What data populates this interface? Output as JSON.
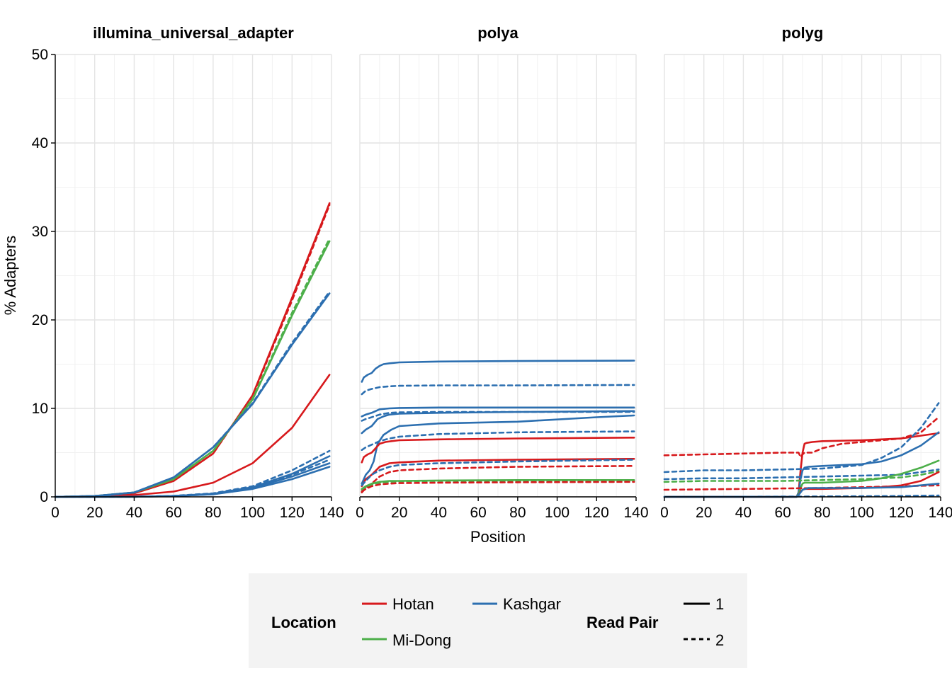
{
  "chart_data": {
    "type": "line",
    "facets": [
      {
        "title": "illumina_universal_adapter",
        "series": [
          {
            "location": "Hotan",
            "read_pair": "1",
            "x": [
              0,
              20,
              40,
              60,
              80,
              100,
              120,
              139
            ],
            "y": [
              0,
              0.1,
              0.4,
              1.8,
              4.9,
              11.5,
              22.5,
              33.2
            ]
          },
          {
            "location": "Hotan",
            "read_pair": "2",
            "x": [
              0,
              20,
              40,
              60,
              80,
              100,
              120,
              139
            ],
            "y": [
              0,
              0.1,
              0.4,
              1.8,
              4.9,
              11.4,
              22.2,
              33.0
            ]
          },
          {
            "location": "Hotan",
            "read_pair": "1",
            "x": [
              0,
              20,
              40,
              60,
              80,
              100,
              120,
              139
            ],
            "y": [
              0,
              0.05,
              0.2,
              0.6,
              1.6,
              3.8,
              7.8,
              13.8
            ]
          },
          {
            "location": "Mi-Dong",
            "read_pair": "1",
            "x": [
              0,
              20,
              40,
              60,
              80,
              100,
              120,
              139
            ],
            "y": [
              0,
              0.1,
              0.5,
              2.0,
              5.2,
              11.0,
              20.5,
              28.9
            ]
          },
          {
            "location": "Mi-Dong",
            "read_pair": "2",
            "x": [
              0,
              20,
              40,
              60,
              80,
              100,
              120,
              139
            ],
            "y": [
              0,
              0.1,
              0.5,
              2.0,
              5.2,
              11.1,
              20.8,
              29.2
            ]
          },
          {
            "location": "Kashgar",
            "read_pair": "1",
            "x": [
              0,
              20,
              40,
              60,
              80,
              100,
              120,
              139
            ],
            "y": [
              0,
              0.1,
              0.5,
              2.2,
              5.6,
              10.5,
              17.2,
              23.0
            ]
          },
          {
            "location": "Kashgar",
            "read_pair": "2",
            "x": [
              0,
              20,
              40,
              60,
              80,
              100,
              120,
              139
            ],
            "y": [
              0,
              0.1,
              0.5,
              2.2,
              5.6,
              10.6,
              17.4,
              23.2
            ]
          },
          {
            "location": "Kashgar",
            "read_pair": "1",
            "x": [
              0,
              40,
              60,
              80,
              100,
              120,
              139
            ],
            "y": [
              0,
              0.02,
              0.1,
              0.3,
              0.9,
              2.0,
              3.4
            ]
          },
          {
            "location": "Kashgar",
            "read_pair": "1",
            "x": [
              0,
              40,
              60,
              80,
              100,
              120,
              139
            ],
            "y": [
              0,
              0.02,
              0.1,
              0.3,
              1.0,
              2.3,
              3.8
            ]
          },
          {
            "location": "Kashgar",
            "read_pair": "1",
            "x": [
              0,
              40,
              60,
              80,
              100,
              120,
              139
            ],
            "y": [
              0,
              0.02,
              0.1,
              0.35,
              1.1,
              2.6,
              4.6
            ]
          },
          {
            "location": "Kashgar",
            "read_pair": "2",
            "x": [
              0,
              40,
              60,
              80,
              100,
              120,
              139
            ],
            "y": [
              0,
              0.02,
              0.1,
              0.35,
              1.1,
              2.5,
              4.2
            ]
          },
          {
            "location": "Kashgar",
            "read_pair": "2",
            "x": [
              0,
              40,
              60,
              80,
              100,
              120,
              139
            ],
            "y": [
              0,
              0.02,
              0.12,
              0.4,
              1.2,
              3.0,
              5.2
            ]
          }
        ]
      },
      {
        "title": "polya",
        "series": [
          {
            "location": "Kashgar",
            "read_pair": "1",
            "x": [
              1,
              2,
              4,
              6,
              8,
              10,
              12,
              15,
              20,
              40,
              80,
              139
            ],
            "y": [
              13,
              13.5,
              13.8,
              14.0,
              14.5,
              14.8,
              15.0,
              15.1,
              15.2,
              15.3,
              15.35,
              15.4
            ]
          },
          {
            "location": "Kashgar",
            "read_pair": "2",
            "x": [
              1,
              3,
              6,
              10,
              15,
              20,
              40,
              80,
              139
            ],
            "y": [
              11.6,
              12.0,
              12.2,
              12.4,
              12.5,
              12.55,
              12.6,
              12.6,
              12.65
            ]
          },
          {
            "location": "Kashgar",
            "read_pair": "1",
            "x": [
              1,
              3,
              6,
              10,
              15,
              20,
              40,
              80,
              139
            ],
            "y": [
              9.1,
              9.3,
              9.5,
              9.9,
              10.0,
              10.05,
              10.1,
              10.1,
              10.1
            ]
          },
          {
            "location": "Kashgar",
            "read_pair": "2",
            "x": [
              1,
              3,
              6,
              10,
              15,
              20,
              40,
              80,
              139
            ],
            "y": [
              8.6,
              8.8,
              9.0,
              9.3,
              9.5,
              9.55,
              9.6,
              9.6,
              9.6
            ]
          },
          {
            "location": "Kashgar",
            "read_pair": "1",
            "x": [
              1,
              3,
              6,
              9,
              12,
              15,
              20,
              40,
              80,
              139
            ],
            "y": [
              7.2,
              7.6,
              8.0,
              8.8,
              9.1,
              9.3,
              9.4,
              9.5,
              9.6,
              9.7
            ]
          },
          {
            "location": "Kashgar",
            "read_pair": "1",
            "x": [
              1,
              3,
              5,
              7,
              9,
              12,
              16,
              20,
              40,
              80,
              120,
              139
            ],
            "y": [
              1.5,
              2.5,
              3.0,
              4.0,
              6.0,
              7.0,
              7.6,
              8.0,
              8.3,
              8.5,
              9.0,
              9.2
            ]
          },
          {
            "location": "Kashgar",
            "read_pair": "2",
            "x": [
              1,
              3,
              6,
              10,
              15,
              20,
              40,
              80,
              139
            ],
            "y": [
              5.3,
              5.6,
              5.9,
              6.3,
              6.6,
              6.8,
              7.1,
              7.3,
              7.4
            ]
          },
          {
            "location": "Hotan",
            "read_pair": "1",
            "x": [
              1,
              2,
              4,
              6,
              8,
              10,
              13,
              16,
              20,
              40,
              80,
              139
            ],
            "y": [
              3.9,
              4.5,
              4.8,
              5.0,
              5.5,
              6.0,
              6.2,
              6.3,
              6.4,
              6.5,
              6.6,
              6.7
            ]
          },
          {
            "location": "Hotan",
            "read_pair": "1",
            "x": [
              1,
              3,
              6,
              10,
              15,
              20,
              40,
              80,
              139
            ],
            "y": [
              1.2,
              2.0,
              2.5,
              3.4,
              3.8,
              3.9,
              4.1,
              4.2,
              4.3
            ]
          },
          {
            "location": "Kashgar",
            "read_pair": "2",
            "x": [
              1,
              3,
              6,
              10,
              15,
              20,
              40,
              80,
              139
            ],
            "y": [
              1.3,
              1.8,
              2.5,
              3.0,
              3.4,
              3.6,
              3.8,
              4.0,
              4.2
            ]
          },
          {
            "location": "Hotan",
            "read_pair": "2",
            "x": [
              1,
              3,
              6,
              10,
              15,
              20,
              40,
              80,
              139
            ],
            "y": [
              0.5,
              1.0,
              1.5,
              2.3,
              2.8,
              3.0,
              3.2,
              3.4,
              3.5
            ]
          },
          {
            "location": "Mi-Dong",
            "read_pair": "1",
            "x": [
              1,
              3,
              6,
              10,
              15,
              20,
              40,
              80,
              139
            ],
            "y": [
              0.9,
              1.2,
              1.5,
              1.7,
              1.8,
              1.8,
              1.85,
              1.9,
              1.9
            ]
          },
          {
            "location": "Mi-Dong",
            "read_pair": "2",
            "x": [
              1,
              3,
              6,
              10,
              15,
              20,
              40,
              80,
              139
            ],
            "y": [
              0.8,
              1.1,
              1.4,
              1.6,
              1.7,
              1.75,
              1.8,
              1.8,
              1.85
            ]
          },
          {
            "location": "Hotan",
            "read_pair": "2",
            "x": [
              1,
              3,
              6,
              10,
              15,
              20,
              40,
              80,
              139
            ],
            "y": [
              0.6,
              0.9,
              1.2,
              1.4,
              1.5,
              1.55,
              1.6,
              1.65,
              1.7
            ]
          }
        ]
      },
      {
        "title": "polyg",
        "series": [
          {
            "location": "Hotan",
            "read_pair": "2",
            "x": [
              0,
              20,
              40,
              60,
              68,
              69,
              70,
              71,
              75,
              80,
              90,
              100,
              110,
              120,
              130,
              139
            ],
            "y": [
              4.7,
              4.8,
              4.9,
              5.0,
              5.0,
              4.5,
              4.8,
              5.0,
              5.0,
              5.5,
              6.0,
              6.2,
              6.4,
              6.6,
              7.3,
              9.0
            ]
          },
          {
            "location": "Hotan",
            "read_pair": "1",
            "x": [
              0,
              60,
              67,
              68,
              69,
              70,
              71,
              72,
              75,
              80,
              100,
              120,
              139
            ],
            "y": [
              0,
              0,
              0,
              0.5,
              3,
              5,
              6,
              6.1,
              6.2,
              6.3,
              6.4,
              6.6,
              7.2
            ]
          },
          {
            "location": "Kashgar",
            "read_pair": "2",
            "x": [
              0,
              20,
              40,
              60,
              80,
              100,
              110,
              120,
              130,
              139
            ],
            "y": [
              2.8,
              3.0,
              3.0,
              3.1,
              3.2,
              3.6,
              4.4,
              5.6,
              7.8,
              10.6
            ]
          },
          {
            "location": "Kashgar",
            "read_pair": "1",
            "x": [
              0,
              60,
              67,
              68,
              69,
              70,
              71,
              73,
              80,
              100,
              110,
              120,
              130,
              139
            ],
            "y": [
              0,
              0,
              0,
              0.5,
              2,
              3,
              3.3,
              3.4,
              3.5,
              3.7,
              4.0,
              4.7,
              5.8,
              7.3
            ]
          },
          {
            "location": "Kashgar",
            "read_pair": "2",
            "x": [
              0,
              20,
              40,
              60,
              80,
              100,
              120,
              130,
              139
            ],
            "y": [
              2.0,
              2.1,
              2.1,
              2.2,
              2.3,
              2.4,
              2.5,
              2.8,
              3.1
            ]
          },
          {
            "location": "Mi-Dong",
            "read_pair": "2",
            "x": [
              0,
              20,
              40,
              60,
              80,
              100,
              120,
              130,
              139
            ],
            "y": [
              1.7,
              1.8,
              1.8,
              1.8,
              1.9,
              2.0,
              2.2,
              2.5,
              2.9
            ]
          },
          {
            "location": "Mi-Dong",
            "read_pair": "1",
            "x": [
              0,
              60,
              67,
              68,
              69,
              70,
              71,
              73,
              80,
              100,
              110,
              120,
              130,
              139
            ],
            "y": [
              0,
              0,
              0,
              0.3,
              1,
              1.5,
              1.6,
              1.6,
              1.6,
              1.8,
              2.1,
              2.6,
              3.3,
              4.1
            ]
          },
          {
            "location": "Hotan",
            "read_pair": "2",
            "x": [
              0,
              20,
              40,
              60,
              80,
              100,
              120,
              139
            ],
            "y": [
              0.8,
              0.85,
              0.9,
              0.95,
              1.0,
              1.1,
              1.2,
              1.3
            ]
          },
          {
            "location": "Hotan",
            "read_pair": "1",
            "x": [
              0,
              60,
              67,
              68,
              69,
              70,
              71,
              73,
              80,
              100,
              110,
              120,
              130,
              139
            ],
            "y": [
              0,
              0,
              0,
              0.2,
              0.6,
              0.8,
              0.9,
              0.9,
              0.9,
              1.0,
              1.1,
              1.3,
              1.8,
              2.8
            ]
          },
          {
            "location": "Kashgar",
            "read_pair": "1",
            "x": [
              0,
              60,
              67,
              68,
              70,
              73,
              80,
              100,
              120,
              139
            ],
            "y": [
              0,
              0,
              0,
              0.2,
              0.8,
              1.0,
              1.0,
              1.0,
              1.1,
              1.5
            ]
          },
          {
            "location": "Kashgar",
            "read_pair": "2",
            "x": [
              0,
              40,
              80,
              120,
              139
            ],
            "y": [
              0,
              0.02,
              0.05,
              0.1,
              0.15
            ]
          }
        ]
      }
    ],
    "x_ticks": [
      0,
      20,
      40,
      60,
      80,
      100,
      120,
      140
    ],
    "x_tick_labels": [
      "0",
      "20",
      "40",
      "60",
      "80",
      "100",
      "120",
      "140"
    ],
    "y_ticks": [
      0,
      10,
      20,
      30,
      40,
      50
    ],
    "y_tick_labels": [
      "0",
      "10",
      "20",
      "30",
      "40",
      "50"
    ],
    "xlim": [
      0,
      140
    ],
    "ylim": [
      0,
      50
    ],
    "xlabel": "Position",
    "ylabel": "% Adapters",
    "grid": true,
    "legend_position": "bottom",
    "colors": {
      "Hotan": "#d7191c",
      "Mi-Dong": "#4daf4a",
      "Kashgar": "#2c6fb0"
    },
    "linestyles": {
      "1": "solid",
      "2": "dashed"
    },
    "legend": {
      "location_title": "Location",
      "location_items": [
        "Hotan",
        "Kashgar",
        "Mi-Dong"
      ],
      "readpair_title": "Read Pair",
      "readpair_items": [
        "1",
        "2"
      ]
    }
  }
}
